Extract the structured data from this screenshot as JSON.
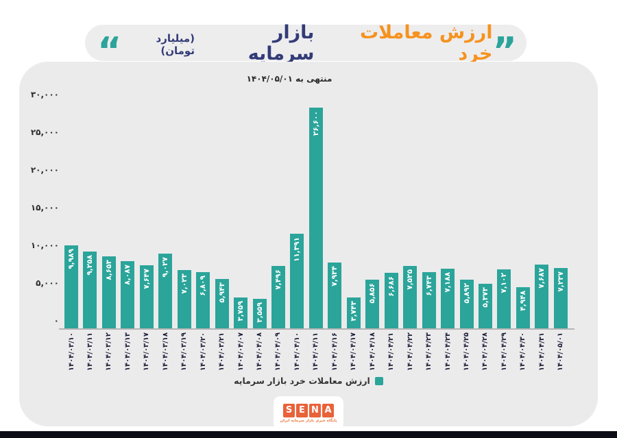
{
  "header": {
    "title_orange": "ارزش معاملات خرد",
    "title_navy": "بازار سرمایه",
    "unit": "(میلیارد تومان)",
    "quote_right": "”",
    "quote_left": "“"
  },
  "subtitle": "منتهی به ۱۴۰۴/۰۵/۰۱",
  "legend": {
    "label": "ارزش معاملات خرد بازار سرمایه"
  },
  "logo": {
    "letters": [
      "S",
      "E",
      "N",
      "A"
    ],
    "tagline": "پایگاه خبری بازار سرمایه ایران"
  },
  "colors": {
    "teal": "#2ba49a",
    "title_orange": "#f6921e",
    "title_navy": "#333b77",
    "panel_bg": "#ebebec",
    "logo_orange": "#e8623a",
    "footer_bar": "#0c0c16"
  },
  "chart_data": {
    "type": "bar",
    "title": "ارزش معاملات خرد بازار سرمایه",
    "subtitle": "منتهی به ۱۴۰۴/۰۵/۰۱",
    "unit": "میلیارد تومان",
    "grid": false,
    "legend_position": "bottom",
    "ylim": [
      0,
      30000
    ],
    "yticks": [
      0,
      5000,
      10000,
      15000,
      20000,
      25000,
      30000
    ],
    "yticks_fa": [
      "۰",
      "۵,۰۰۰",
      "۱۰,۰۰۰",
      "۱۵,۰۰۰",
      "۲۰,۰۰۰",
      "۲۵,۰۰۰",
      "۳۰,۰۰۰"
    ],
    "categories": [
      "۱۴۰۴/۰۳/۱۰",
      "۱۴۰۴/۰۳/۱۱",
      "۱۴۰۴/۰۳/۱۲",
      "۱۴۰۴/۰۳/۱۳",
      "۱۴۰۴/۰۳/۱۷",
      "۱۴۰۴/۰۳/۱۸",
      "۱۴۰۴/۰۳/۱۹",
      "۱۴۰۴/۰۳/۲۰",
      "۱۴۰۴/۰۳/۲۱",
      "۱۴۰۴/۰۴/۰۷",
      "۱۴۰۴/۰۴/۰۸",
      "۱۴۰۴/۰۴/۰۹",
      "۱۴۰۴/۰۴/۱۰",
      "۱۴۰۴/۰۴/۱۱",
      "۱۴۰۴/۰۴/۱۶",
      "۱۴۰۴/۰۴/۱۷",
      "۱۴۰۴/۰۴/۱۸",
      "۱۴۰۴/۰۴/۲۱",
      "۱۴۰۴/۰۴/۲۲",
      "۱۴۰۴/۰۴/۲۳",
      "۱۴۰۴/۰۴/۲۴",
      "۱۴۰۴/۰۴/۲۵",
      "۱۴۰۴/۰۴/۲۸",
      "۱۴۰۴/۰۴/۲۹",
      "۱۴۰۴/۰۴/۳۰",
      "۱۴۰۴/۰۴/۳۱",
      "۱۴۰۴/۰۵/۰۱"
    ],
    "values": [
      9989,
      9258,
      8653,
      8087,
      7647,
      9027,
      7023,
      6809,
      5943,
      3759,
      3559,
      7496,
      11391,
      26600,
      7934,
      3743,
      5856,
      6686,
      7525,
      6743,
      7188,
      5892,
      5373,
      7102,
      4948,
      7687,
      7237
    ],
    "values_fa": [
      "۹,۹۸۹",
      "۹,۲۵۸",
      "۸,۶۵۳",
      "۸,۰۸۷",
      "۷,۶۴۷",
      "۹,۰۲۷",
      "۷,۰۲۳",
      "۶,۸۰۹",
      "۵,۹۴۳",
      "۳,۷۵۹",
      "۳,۵۵۹",
      "۷,۴۹۶",
      "۱۱,۳۹۱",
      "۲۶,۶۰۰",
      "۷,۹۳۴",
      "۳,۷۴۳",
      "۵,۸۵۶",
      "۶,۶۸۶",
      "۷,۵۲۵",
      "۶,۷۴۳",
      "۷,۱۸۸",
      "۵,۸۹۲",
      "۵,۳۷۳",
      "۷,۱۰۲",
      "۴,۹۴۸",
      "۷,۶۸۷",
      "۷,۲۳۷"
    ]
  }
}
